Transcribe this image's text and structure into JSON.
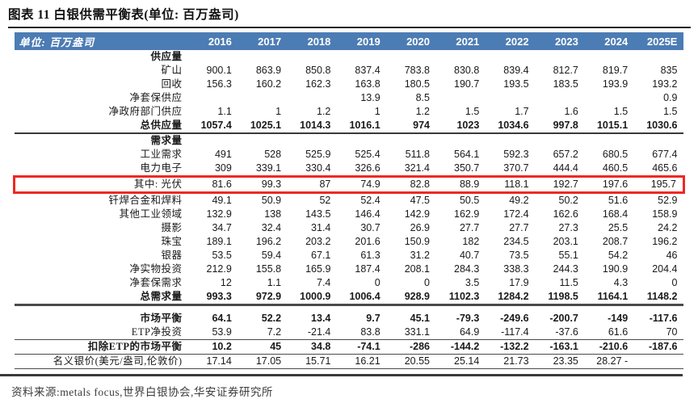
{
  "title": "图表 11 白银供需平衡表(单位: 百万盎司)",
  "colors": {
    "header_bg": "#4c7cb4",
    "highlight_border": "#ee2922",
    "rule": "#3a3a3a"
  },
  "source": "资料来源:metals focus,世界白银协会,华安证券研究所",
  "chart_data": {
    "type": "table",
    "title": "白银供需平衡表",
    "unit": "百万盎司",
    "corner_label": "单位: 百万盎司",
    "years": [
      "2016",
      "2017",
      "2018",
      "2019",
      "2020",
      "2021",
      "2022",
      "2023",
      "2024",
      "2025E"
    ],
    "rows": [
      {
        "label": "供应量",
        "section": true,
        "values": [
          "",
          "",
          "",
          "",
          "",
          "",
          "",
          "",
          "",
          ""
        ]
      },
      {
        "label": "矿山",
        "values": [
          "900.1",
          "863.9",
          "850.8",
          "837.4",
          "783.8",
          "830.8",
          "839.4",
          "812.7",
          "819.7",
          "835"
        ]
      },
      {
        "label": "回收",
        "values": [
          "156.3",
          "160.2",
          "162.3",
          "163.8",
          "180.5",
          "190.7",
          "193.5",
          "183.5",
          "193.9",
          "193.2"
        ]
      },
      {
        "label": "净套保供应",
        "values": [
          "",
          "",
          "",
          "13.9",
          "8.5",
          "",
          "",
          "",
          "",
          "0.9"
        ]
      },
      {
        "label": "净政府部门供应",
        "values": [
          "1.1",
          "1",
          "1.2",
          "1",
          "1.2",
          "1.5",
          "1.7",
          "1.6",
          "1.5",
          "1.5"
        ]
      },
      {
        "label": "总供应量",
        "bold": true,
        "rule": "medium",
        "values": [
          "1057.4",
          "1025.1",
          "1014.3",
          "1016.1",
          "974",
          "1023",
          "1034.6",
          "997.8",
          "1015.1",
          "1030.6"
        ]
      },
      {
        "label": "需求量",
        "section": true,
        "values": [
          "",
          "",
          "",
          "",
          "",
          "",
          "",
          "",
          "",
          ""
        ]
      },
      {
        "label": "工业需求",
        "values": [
          "491",
          "528",
          "525.9",
          "525.4",
          "511.8",
          "564.1",
          "592.3",
          "657.2",
          "680.5",
          "677.4"
        ]
      },
      {
        "label": "电力电子",
        "indent": true,
        "values": [
          "309",
          "339.1",
          "330.4",
          "326.6",
          "321.4",
          "350.7",
          "370.7",
          "444.4",
          "460.5",
          "465.6"
        ]
      },
      {
        "label": "其中: 光伏",
        "indent": true,
        "highlight": true,
        "values": [
          "81.6",
          "99.3",
          "87",
          "74.9",
          "82.8",
          "88.9",
          "118.1",
          "192.7",
          "197.6",
          "195.7"
        ]
      },
      {
        "label": "钎焊合金和焊料",
        "indent": true,
        "values": [
          "49.1",
          "50.9",
          "52",
          "52.4",
          "47.5",
          "50.5",
          "49.2",
          "50.2",
          "51.6",
          "52.9"
        ]
      },
      {
        "label": "其他工业领域",
        "indent": true,
        "values": [
          "132.9",
          "138",
          "143.5",
          "146.4",
          "142.9",
          "162.9",
          "172.4",
          "162.6",
          "168.4",
          "158.9"
        ]
      },
      {
        "label": "摄影",
        "values": [
          "34.7",
          "32.4",
          "31.4",
          "30.7",
          "26.9",
          "27.7",
          "27.7",
          "27.3",
          "25.5",
          "24.2"
        ]
      },
      {
        "label": "珠宝",
        "values": [
          "189.1",
          "196.2",
          "203.2",
          "201.6",
          "150.9",
          "182",
          "234.5",
          "203.1",
          "208.7",
          "196.2"
        ]
      },
      {
        "label": "银器",
        "values": [
          "53.5",
          "59.4",
          "67.1",
          "61.3",
          "31.2",
          "40.7",
          "73.5",
          "55.1",
          "54.2",
          "46"
        ]
      },
      {
        "label": "净实物投资",
        "values": [
          "212.9",
          "155.8",
          "165.9",
          "187.4",
          "208.1",
          "284.3",
          "338.3",
          "244.3",
          "190.9",
          "204.4"
        ]
      },
      {
        "label": "净套保需求",
        "values": [
          "12",
          "1.1",
          "7.4",
          "0",
          "0",
          "3.5",
          "17.9",
          "11.5",
          "4.3",
          "0"
        ]
      },
      {
        "label": "总需求量",
        "bold": true,
        "rule": "thick",
        "values": [
          "993.3",
          "972.9",
          "1000.9",
          "1006.4",
          "928.9",
          "1102.3",
          "1284.2",
          "1198.5",
          "1164.1",
          "1148.2"
        ]
      },
      {
        "label": "市场平衡",
        "bold": true,
        "gap": true,
        "values": [
          "64.1",
          "52.2",
          "13.4",
          "9.7",
          "45.1",
          "-79.3",
          "-249.6",
          "-200.7",
          "-149",
          "-117.6"
        ]
      },
      {
        "label": "ETP净投资",
        "rule": "thin",
        "values": [
          "53.9",
          "7.2",
          "-21.4",
          "83.8",
          "331.1",
          "64.9",
          "-117.4",
          "-37.6",
          "61.6",
          "70"
        ]
      },
      {
        "label": "扣除ETP的市场平衡",
        "bold": true,
        "rule": "thin",
        "values": [
          "10.2",
          "45",
          "34.8",
          "-74.1",
          "-286",
          "-144.2",
          "-132.2",
          "-163.1",
          "-210.6",
          "-187.6"
        ]
      },
      {
        "label": "名义银价(美元/盎司,伦敦价)",
        "rule": "thin",
        "values": [
          "17.14",
          "17.05",
          "15.71",
          "16.21",
          "20.55",
          "25.14",
          "21.73",
          "23.35",
          "28.27 -",
          ""
        ]
      }
    ]
  }
}
